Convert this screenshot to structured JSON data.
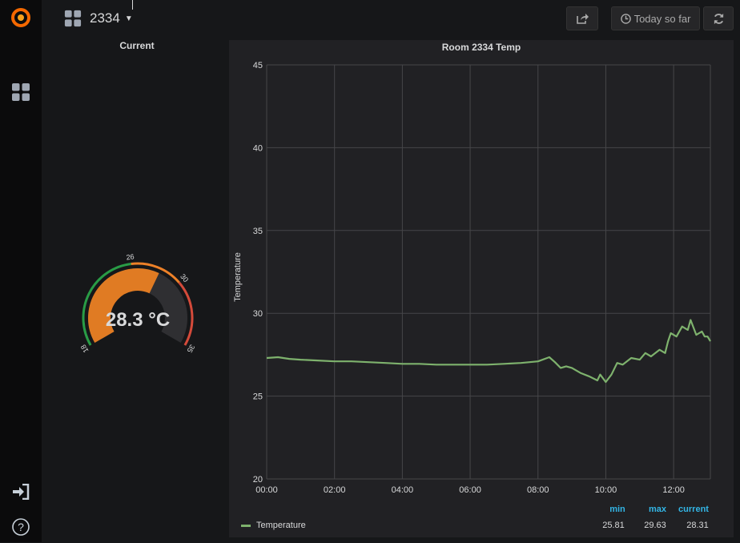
{
  "dashboard": {
    "title": "2334"
  },
  "toolbar": {
    "time_range_label": "Today so far"
  },
  "gauge_panel": {
    "title": "Current",
    "value": 28.3,
    "value_text": "28.3 °C",
    "min": 18,
    "max": 35,
    "thresholds": [
      26,
      30
    ],
    "tick_labels": [
      "18",
      "26",
      "30",
      "35"
    ],
    "colors": {
      "ok": "#299c46",
      "warn": "#ed8128",
      "crit": "#d44a3a",
      "fill": "#e07b23",
      "track": "#2f2f32"
    }
  },
  "graph_panel": {
    "title": "Room 2334 Temp",
    "legend": {
      "headers": {
        "min": "min",
        "max": "max",
        "current": "current"
      },
      "series": [
        {
          "name": "Temperature",
          "min": "25.81",
          "max": "29.63",
          "current": "28.31",
          "color": "#7eb26d"
        }
      ]
    }
  },
  "chart_data": {
    "type": "line",
    "title": "Room 2334 Temp",
    "xlabel": "",
    "ylabel": "Temperature",
    "xlim": [
      "00:00",
      "13:05"
    ],
    "ylim": [
      20,
      45
    ],
    "x_ticks": [
      "00:00",
      "02:00",
      "04:00",
      "06:00",
      "08:00",
      "10:00",
      "12:00"
    ],
    "y_ticks": [
      "20",
      "25",
      "30",
      "35",
      "40",
      "45"
    ],
    "grid": true,
    "legend": "bottom-left",
    "series": [
      {
        "name": "Temperature",
        "color": "#7eb26d",
        "points": [
          [
            "00:00",
            27.3
          ],
          [
            "00:20",
            27.35
          ],
          [
            "00:40",
            27.25
          ],
          [
            "01:00",
            27.2
          ],
          [
            "01:30",
            27.15
          ],
          [
            "02:00",
            27.1
          ],
          [
            "02:30",
            27.1
          ],
          [
            "03:00",
            27.05
          ],
          [
            "03:30",
            27.0
          ],
          [
            "04:00",
            26.95
          ],
          [
            "04:30",
            26.95
          ],
          [
            "05:00",
            26.9
          ],
          [
            "05:30",
            26.9
          ],
          [
            "06:00",
            26.9
          ],
          [
            "06:30",
            26.9
          ],
          [
            "07:00",
            26.95
          ],
          [
            "07:30",
            27.0
          ],
          [
            "08:00",
            27.1
          ],
          [
            "08:20",
            27.35
          ],
          [
            "08:30",
            27.05
          ],
          [
            "08:40",
            26.7
          ],
          [
            "08:50",
            26.8
          ],
          [
            "09:00",
            26.7
          ],
          [
            "09:15",
            26.4
          ],
          [
            "09:30",
            26.2
          ],
          [
            "09:45",
            25.95
          ],
          [
            "09:50",
            26.3
          ],
          [
            "10:00",
            25.85
          ],
          [
            "10:10",
            26.3
          ],
          [
            "10:20",
            27.0
          ],
          [
            "10:30",
            26.9
          ],
          [
            "10:45",
            27.3
          ],
          [
            "11:00",
            27.2
          ],
          [
            "11:10",
            27.6
          ],
          [
            "11:20",
            27.4
          ],
          [
            "11:35",
            27.8
          ],
          [
            "11:45",
            27.6
          ],
          [
            "11:50",
            28.3
          ],
          [
            "11:55",
            28.8
          ],
          [
            "12:05",
            28.6
          ],
          [
            "12:15",
            29.2
          ],
          [
            "12:25",
            29.0
          ],
          [
            "12:30",
            29.6
          ],
          [
            "12:40",
            28.7
          ],
          [
            "12:50",
            28.9
          ],
          [
            "12:55",
            28.6
          ],
          [
            "13:00",
            28.6
          ],
          [
            "13:05",
            28.31
          ]
        ]
      }
    ]
  }
}
